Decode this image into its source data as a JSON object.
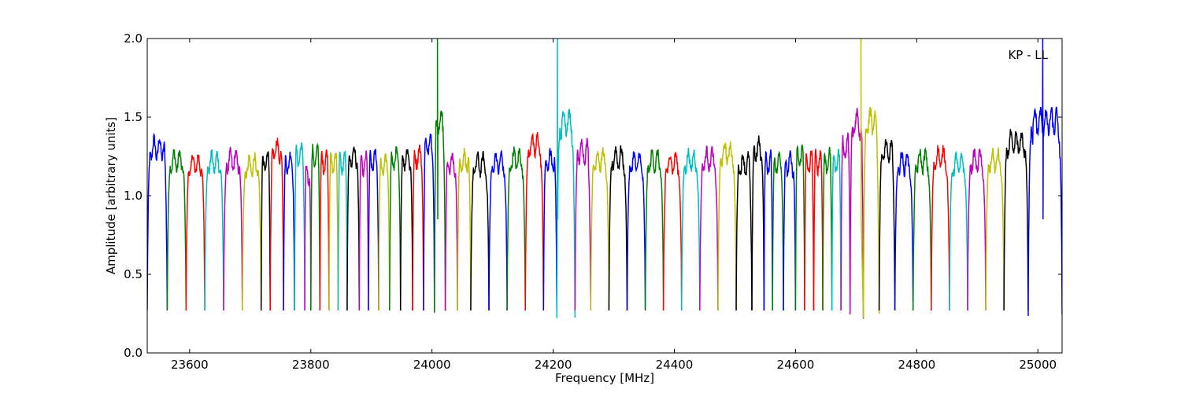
{
  "chart_data": {
    "type": "line",
    "title": "",
    "annotation": "KP - LL",
    "xlabel": "Frequency [MHz]",
    "ylabel": "Amplitude [arbitrary units]",
    "xlim": [
      23530,
      25040
    ],
    "ylim": [
      0.0,
      2.0
    ],
    "xticks": [
      23600,
      23800,
      24000,
      24200,
      24400,
      24600,
      24800,
      25000
    ],
    "yticks": [
      0.0,
      0.5,
      1.0,
      1.5,
      2.0
    ],
    "xtick_labels": [
      "23600",
      "23800",
      "24000",
      "24200",
      "24400",
      "24600",
      "24800",
      "25000"
    ],
    "ytick_labels": [
      "0.0",
      "0.5",
      "1.0",
      "1.5",
      "2.0"
    ],
    "grid": false,
    "legend": "none",
    "color_cycle": [
      "#0000ff",
      "#008000",
      "#ff0000",
      "#00bfbf",
      "#bf00bf",
      "#bfbf00",
      "#000000"
    ],
    "channels": [
      {
        "start": 23530,
        "end": 23563,
        "color": "#0000ff",
        "peak": 1.3
      },
      {
        "start": 23563,
        "end": 23594,
        "color": "#008000",
        "peak": 1.22
      },
      {
        "start": 23594,
        "end": 23625,
        "color": "#ff0000",
        "peak": 1.2
      },
      {
        "start": 23625,
        "end": 23656,
        "color": "#00bfbf",
        "peak": 1.21
      },
      {
        "start": 23656,
        "end": 23687,
        "color": "#bf00bf",
        "peak": 1.22
      },
      {
        "start": 23687,
        "end": 23718,
        "color": "#bfbf00",
        "peak": 1.19
      },
      {
        "start": 23718,
        "end": 23733,
        "color": "#000000",
        "peak": 1.21
      },
      {
        "start": 23733,
        "end": 23755,
        "color": "#ff0000",
        "peak": 1.29
      },
      {
        "start": 23755,
        "end": 23773,
        "color": "#0000ff",
        "peak": 1.21
      },
      {
        "start": 23773,
        "end": 23790,
        "color": "#00bfbf",
        "peak": 1.26
      },
      {
        "start": 23790,
        "end": 23800,
        "color": "#bf00bf",
        "peak": 1.13
      },
      {
        "start": 23800,
        "end": 23815,
        "color": "#008000",
        "peak": 1.25
      },
      {
        "start": 23815,
        "end": 23830,
        "color": "#ff0000",
        "peak": 1.22
      },
      {
        "start": 23830,
        "end": 23845,
        "color": "#bfbf00",
        "peak": 1.21
      },
      {
        "start": 23845,
        "end": 23860,
        "color": "#00bfbf",
        "peak": 1.21
      },
      {
        "start": 23860,
        "end": 23880,
        "color": "#000000",
        "peak": 1.25
      },
      {
        "start": 23880,
        "end": 23895,
        "color": "#bf00bf",
        "peak": 1.2
      },
      {
        "start": 23895,
        "end": 23912,
        "color": "#0000ff",
        "peak": 1.22
      },
      {
        "start": 23912,
        "end": 23930,
        "color": "#bfbf00",
        "peak": 1.19
      },
      {
        "start": 23930,
        "end": 23948,
        "color": "#008000",
        "peak": 1.23
      },
      {
        "start": 23948,
        "end": 23968,
        "color": "#000000",
        "peak": 1.24
      },
      {
        "start": 23968,
        "end": 23986,
        "color": "#ff0000",
        "peak": 1.25
      },
      {
        "start": 23986,
        "end": 24004,
        "color": "#0000ff",
        "peak": 1.33
      },
      {
        "start": 24004,
        "end": 24022,
        "color": "#008000",
        "peak": 1.47,
        "spike": 2.0,
        "spike_x": 24009
      },
      {
        "start": 24022,
        "end": 24042,
        "color": "#bf00bf",
        "peak": 1.2
      },
      {
        "start": 24042,
        "end": 24064,
        "color": "#bfbf00",
        "peak": 1.22
      },
      {
        "start": 24064,
        "end": 24094,
        "color": "#000000",
        "peak": 1.2
      },
      {
        "start": 24094,
        "end": 24124,
        "color": "#0000ff",
        "peak": 1.21
      },
      {
        "start": 24124,
        "end": 24154,
        "color": "#008000",
        "peak": 1.23
      },
      {
        "start": 24154,
        "end": 24184,
        "color": "#ff0000",
        "peak": 1.32
      },
      {
        "start": 24184,
        "end": 24206,
        "color": "#0000ff",
        "peak": 1.22
      },
      {
        "start": 24206,
        "end": 24236,
        "color": "#00bfbf",
        "peak": 1.47,
        "spike": 2.0,
        "spike_x": 24207
      },
      {
        "start": 24236,
        "end": 24262,
        "color": "#bf00bf",
        "peak": 1.28
      },
      {
        "start": 24262,
        "end": 24292,
        "color": "#bfbf00",
        "peak": 1.23
      },
      {
        "start": 24292,
        "end": 24322,
        "color": "#000000",
        "peak": 1.24
      },
      {
        "start": 24322,
        "end": 24352,
        "color": "#0000ff",
        "peak": 1.21
      },
      {
        "start": 24352,
        "end": 24382,
        "color": "#008000",
        "peak": 1.22
      },
      {
        "start": 24382,
        "end": 24412,
        "color": "#ff0000",
        "peak": 1.21
      },
      {
        "start": 24412,
        "end": 24442,
        "color": "#00bfbf",
        "peak": 1.22
      },
      {
        "start": 24442,
        "end": 24472,
        "color": "#bf00bf",
        "peak": 1.23
      },
      {
        "start": 24472,
        "end": 24502,
        "color": "#bfbf00",
        "peak": 1.27
      },
      {
        "start": 24502,
        "end": 24528,
        "color": "#000000",
        "peak": 1.2
      },
      {
        "start": 24528,
        "end": 24548,
        "color": "#000000",
        "peak": 1.29
      },
      {
        "start": 24548,
        "end": 24562,
        "color": "#0000ff",
        "peak": 1.21
      },
      {
        "start": 24562,
        "end": 24580,
        "color": "#008000",
        "peak": 1.21
      },
      {
        "start": 24580,
        "end": 24600,
        "color": "#0000ff",
        "peak": 1.2
      },
      {
        "start": 24600,
        "end": 24615,
        "color": "#008000",
        "peak": 1.25
      },
      {
        "start": 24615,
        "end": 24630,
        "color": "#ff0000",
        "peak": 1.21
      },
      {
        "start": 24630,
        "end": 24645,
        "color": "#ff0000",
        "peak": 1.22
      },
      {
        "start": 24645,
        "end": 24660,
        "color": "#008000",
        "peak": 1.22
      },
      {
        "start": 24660,
        "end": 24675,
        "color": "#00bfbf",
        "peak": 1.22
      },
      {
        "start": 24675,
        "end": 24690,
        "color": "#bf00bf",
        "peak": 1.31
      },
      {
        "start": 24690,
        "end": 24712,
        "color": "#bf00bf",
        "peak": 1.47
      },
      {
        "start": 24712,
        "end": 24738,
        "color": "#bfbf00",
        "peak": 1.47,
        "spike": 2.0,
        "spike_x": 24708
      },
      {
        "start": 24738,
        "end": 24764,
        "color": "#000000",
        "peak": 1.28
      },
      {
        "start": 24764,
        "end": 24794,
        "color": "#0000ff",
        "peak": 1.21
      },
      {
        "start": 24794,
        "end": 24824,
        "color": "#008000",
        "peak": 1.22
      },
      {
        "start": 24824,
        "end": 24854,
        "color": "#ff0000",
        "peak": 1.24
      },
      {
        "start": 24854,
        "end": 24884,
        "color": "#00bfbf",
        "peak": 1.2
      },
      {
        "start": 24884,
        "end": 24914,
        "color": "#bf00bf",
        "peak": 1.22
      },
      {
        "start": 24914,
        "end": 24944,
        "color": "#bfbf00",
        "peak": 1.22
      },
      {
        "start": 24944,
        "end": 24984,
        "color": "#000000",
        "peak": 1.33
      },
      {
        "start": 24984,
        "end": 25040,
        "color": "#0000ff",
        "peak": 1.47,
        "spike": 2.0,
        "spike_x": 25008
      }
    ]
  }
}
